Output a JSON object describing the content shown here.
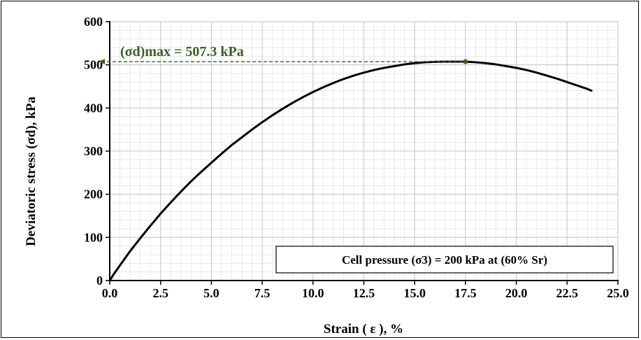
{
  "chart_data": {
    "type": "line",
    "title": "",
    "xlabel": "Strain ( ε ), %",
    "ylabel": "Deviatoric stress (σd), kPa",
    "xlim": [
      0,
      25
    ],
    "ylim": [
      0,
      600
    ],
    "x_ticks": [
      "0.0",
      "2.5",
      "5.0",
      "7.5",
      "10.0",
      "12.5",
      "15.0",
      "17.5",
      "20.0",
      "22.5",
      "25.0"
    ],
    "y_ticks": [
      "0",
      "100",
      "200",
      "300",
      "400",
      "500",
      "600"
    ],
    "grid": true,
    "series": [
      {
        "x": [
          0.0,
          0.2,
          0.5,
          1.0,
          1.5,
          2.0,
          2.5,
          3.0,
          3.5,
          4.0,
          4.5,
          5.0,
          5.5,
          6.0,
          6.5,
          7.0,
          7.5,
          8.0,
          8.5,
          9.0,
          9.5,
          10.0,
          10.5,
          11.0,
          11.5,
          12.0,
          12.5,
          13.0,
          13.5,
          14.0,
          14.5,
          15.0,
          15.5,
          16.0,
          16.5,
          17.0,
          17.5,
          18.0,
          18.5,
          19.0,
          19.5,
          20.0,
          20.5,
          21.0,
          21.5,
          22.0,
          22.5,
          23.0,
          23.5,
          23.7
        ],
        "y": [
          0,
          15,
          35,
          68,
          98,
          127,
          155,
          181,
          206,
          230,
          252,
          273,
          294,
          314,
          332,
          350,
          367,
          383,
          398,
          412,
          425,
          437,
          448,
          458,
          467,
          475,
          482,
          488,
          493,
          497,
          501,
          504,
          506,
          507,
          507.3,
          507.3,
          507.3,
          506,
          504,
          501,
          497,
          493,
          488,
          482,
          475,
          468,
          460,
          452,
          444,
          440
        ],
        "color": "#000000"
      }
    ],
    "annotations": {
      "peak_label": "(σd)max  = 507.3 kPa",
      "peak": {
        "x": 17.5,
        "y": 507.3
      },
      "peak_color": "#376223",
      "legend_box": "Cell pressure (σ3) = 200 kPa at (60% Sr)"
    }
  }
}
